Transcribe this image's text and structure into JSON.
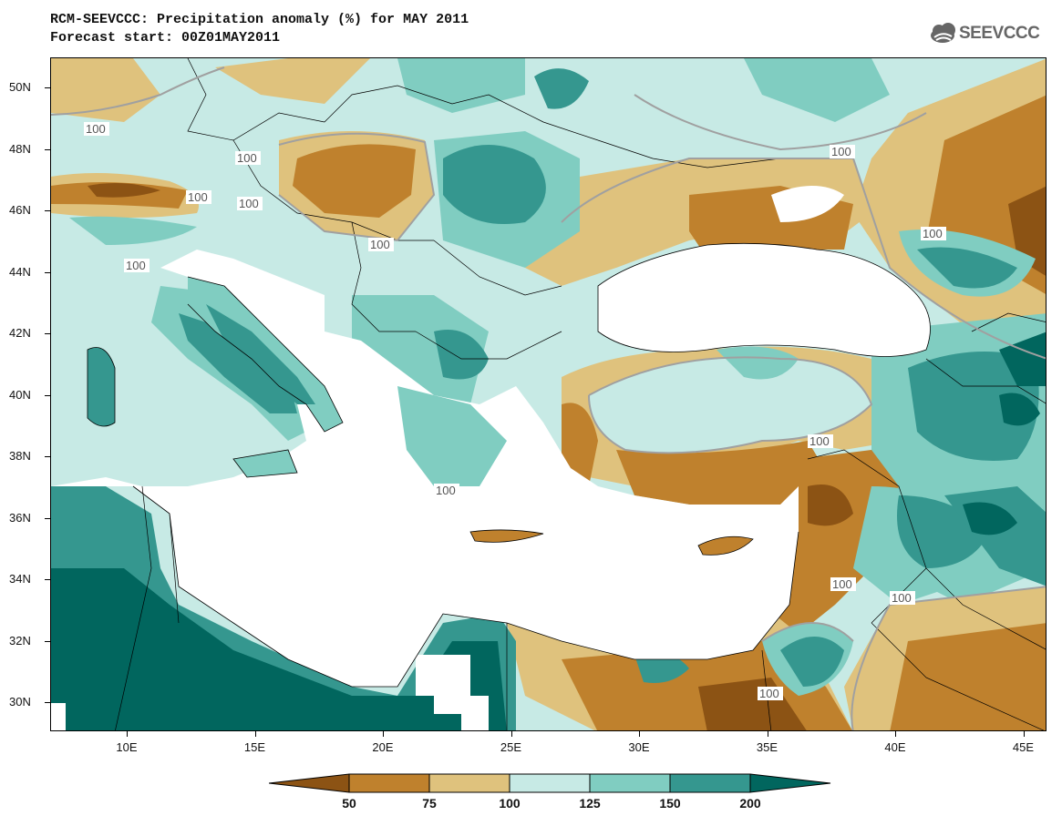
{
  "title_line1": "RCM-SEEVCCC: Precipitation anomaly (%) for MAY 2011",
  "title_line2": "Forecast start: 00Z01MAY2011",
  "logo_text": "SEEVCCC",
  "lat_labels": [
    "50N",
    "48N",
    "46N",
    "44N",
    "42N",
    "40N",
    "38N",
    "36N",
    "34N",
    "32N",
    "30N"
  ],
  "lon_labels": [
    "10E",
    "15E",
    "20E",
    "25E",
    "30E",
    "35E",
    "40E",
    "45E"
  ],
  "contour_label": "100",
  "legend": {
    "levels": [
      "50",
      "75",
      "100",
      "125",
      "150",
      "200"
    ],
    "colors": [
      "#8c5314",
      "#bf812d",
      "#dfc27d",
      "#c7eae5",
      "#80cdc1",
      "#35978f",
      "#01665e"
    ]
  },
  "colors": {
    "land_white": "#ffffff",
    "border": "#000000",
    "contour_100": "#a0a0a0"
  }
}
